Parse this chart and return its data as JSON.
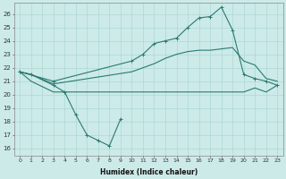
{
  "background_color": "#cceae8",
  "grid_color": "#add8d5",
  "line_color": "#2a7a70",
  "xlabel": "Humidex (Indice chaleur)",
  "xlim": [
    -0.5,
    23.5
  ],
  "ylim": [
    15.5,
    26.8
  ],
  "yticks": [
    16,
    17,
    18,
    19,
    20,
    21,
    22,
    23,
    24,
    25,
    26
  ],
  "xticks": [
    0,
    1,
    2,
    3,
    4,
    5,
    6,
    7,
    8,
    9,
    10,
    11,
    12,
    13,
    14,
    15,
    16,
    17,
    18,
    19,
    20,
    21,
    22,
    23
  ],
  "line1_x": [
    0,
    1,
    3,
    4,
    5,
    6,
    7,
    8,
    9
  ],
  "line1_y": [
    21.7,
    21.5,
    20.7,
    20.2,
    18.5,
    17.0,
    16.6,
    16.2,
    18.2
  ],
  "line2_x": [
    0,
    1,
    3,
    9,
    10,
    11,
    12,
    13,
    14,
    15,
    16,
    17,
    18,
    19,
    20,
    21,
    22,
    23
  ],
  "line2_y": [
    21.7,
    21.0,
    20.2,
    20.2,
    20.2,
    20.2,
    20.2,
    20.2,
    20.2,
    20.2,
    20.2,
    20.2,
    20.2,
    20.2,
    20.2,
    20.5,
    20.2,
    20.7
  ],
  "line3_x": [
    0,
    1,
    3,
    10,
    11,
    12,
    13,
    14,
    15,
    16,
    17,
    19,
    20,
    21,
    22,
    23
  ],
  "line3_y": [
    21.7,
    21.5,
    20.8,
    21.7,
    22.0,
    22.3,
    22.7,
    23.0,
    23.2,
    23.3,
    23.3,
    23.5,
    22.5,
    22.2,
    21.2,
    21.0
  ],
  "line4_x": [
    0,
    3,
    10,
    11,
    12,
    13,
    14,
    15,
    16,
    17,
    18,
    19,
    20,
    21,
    22,
    23
  ],
  "line4_y": [
    21.7,
    21.0,
    22.5,
    23.0,
    23.8,
    24.0,
    24.2,
    25.0,
    25.7,
    25.8,
    26.5,
    24.8,
    21.5,
    21.2,
    21.0,
    20.7
  ]
}
